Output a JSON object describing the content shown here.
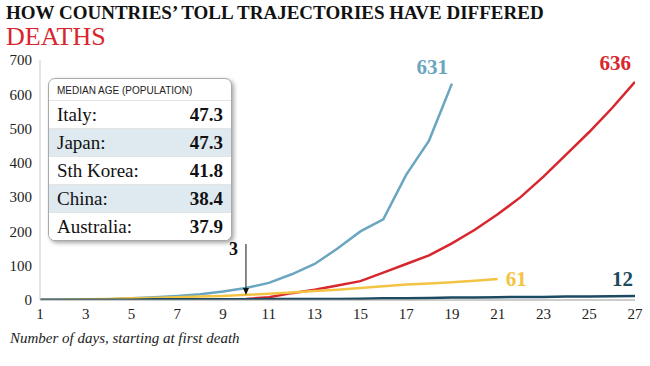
{
  "chart_data": {
    "type": "line",
    "title": "HOW COUNTRIES’ TOLL TRAJECTORIES HAVE DIFFERED",
    "subtitle": "DEATHS",
    "x_label": "Number of days, starting at first death",
    "x": [
      1,
      2,
      3,
      4,
      5,
      6,
      7,
      8,
      9,
      10,
      11,
      12,
      13,
      14,
      15,
      16,
      17,
      18,
      19,
      20,
      21,
      22,
      23,
      24,
      25,
      26,
      27
    ],
    "series": [
      {
        "color": "#6aa6c0",
        "values": [
          0,
          0,
          1,
          2,
          5,
          8,
          12,
          17,
          25,
          35,
          50,
          75,
          105,
          150,
          200,
          235,
          365,
          465,
          631,
          null,
          null,
          null,
          null,
          null,
          null,
          null,
          null
        ]
      },
      {
        "color": "#d8262e",
        "values": [
          null,
          null,
          null,
          null,
          null,
          null,
          null,
          null,
          null,
          3,
          8,
          20,
          30,
          42,
          55,
          80,
          105,
          130,
          165,
          205,
          250,
          300,
          360,
          425,
          490,
          560,
          636
        ]
      },
      {
        "color": "#f3c444",
        "values": [
          0,
          1,
          2,
          3,
          5,
          6,
          8,
          10,
          12,
          15,
          18,
          22,
          26,
          30,
          35,
          40,
          45,
          48,
          52,
          56,
          61,
          null,
          null,
          null,
          null,
          null,
          null
        ]
      },
      {
        "color": "#1c4a60",
        "values": [
          1,
          1,
          1,
          1,
          1,
          2,
          2,
          2,
          2,
          2,
          3,
          3,
          3,
          3,
          4,
          5,
          5,
          6,
          7,
          7,
          8,
          9,
          9,
          10,
          10,
          11,
          12
        ]
      }
    ],
    "xlim": [
      1,
      27
    ],
    "xticks": [
      1,
      3,
      5,
      7,
      9,
      11,
      13,
      15,
      17,
      19,
      21,
      23,
      25,
      27
    ],
    "ylim": [
      0,
      700
    ],
    "yticks": [
      0,
      100,
      200,
      300,
      400,
      500,
      600,
      700
    ],
    "grid": false,
    "annotations": [
      {
        "text": "631",
        "x": 19,
        "y": 631,
        "color": "#6aa6c0"
      },
      {
        "text": "636",
        "x": 27,
        "y": 636,
        "color": "#d8262e"
      },
      {
        "text": "61",
        "x": 21,
        "y": 61,
        "color": "#f3c444"
      },
      {
        "text": "12",
        "x": 27,
        "y": 12,
        "color": "#1c4a60"
      },
      {
        "text": "3",
        "x": 10,
        "y": 3,
        "color": "#111111"
      }
    ],
    "inset_table": {
      "title": "MEDIAN AGE (POPULATION)",
      "rows": [
        [
          "Italy:",
          47.3
        ],
        [
          "Japan:",
          47.3
        ],
        [
          "Sth Korea:",
          41.8
        ],
        [
          "China:",
          38.4
        ],
        [
          "Australia:",
          37.9
        ]
      ]
    }
  }
}
